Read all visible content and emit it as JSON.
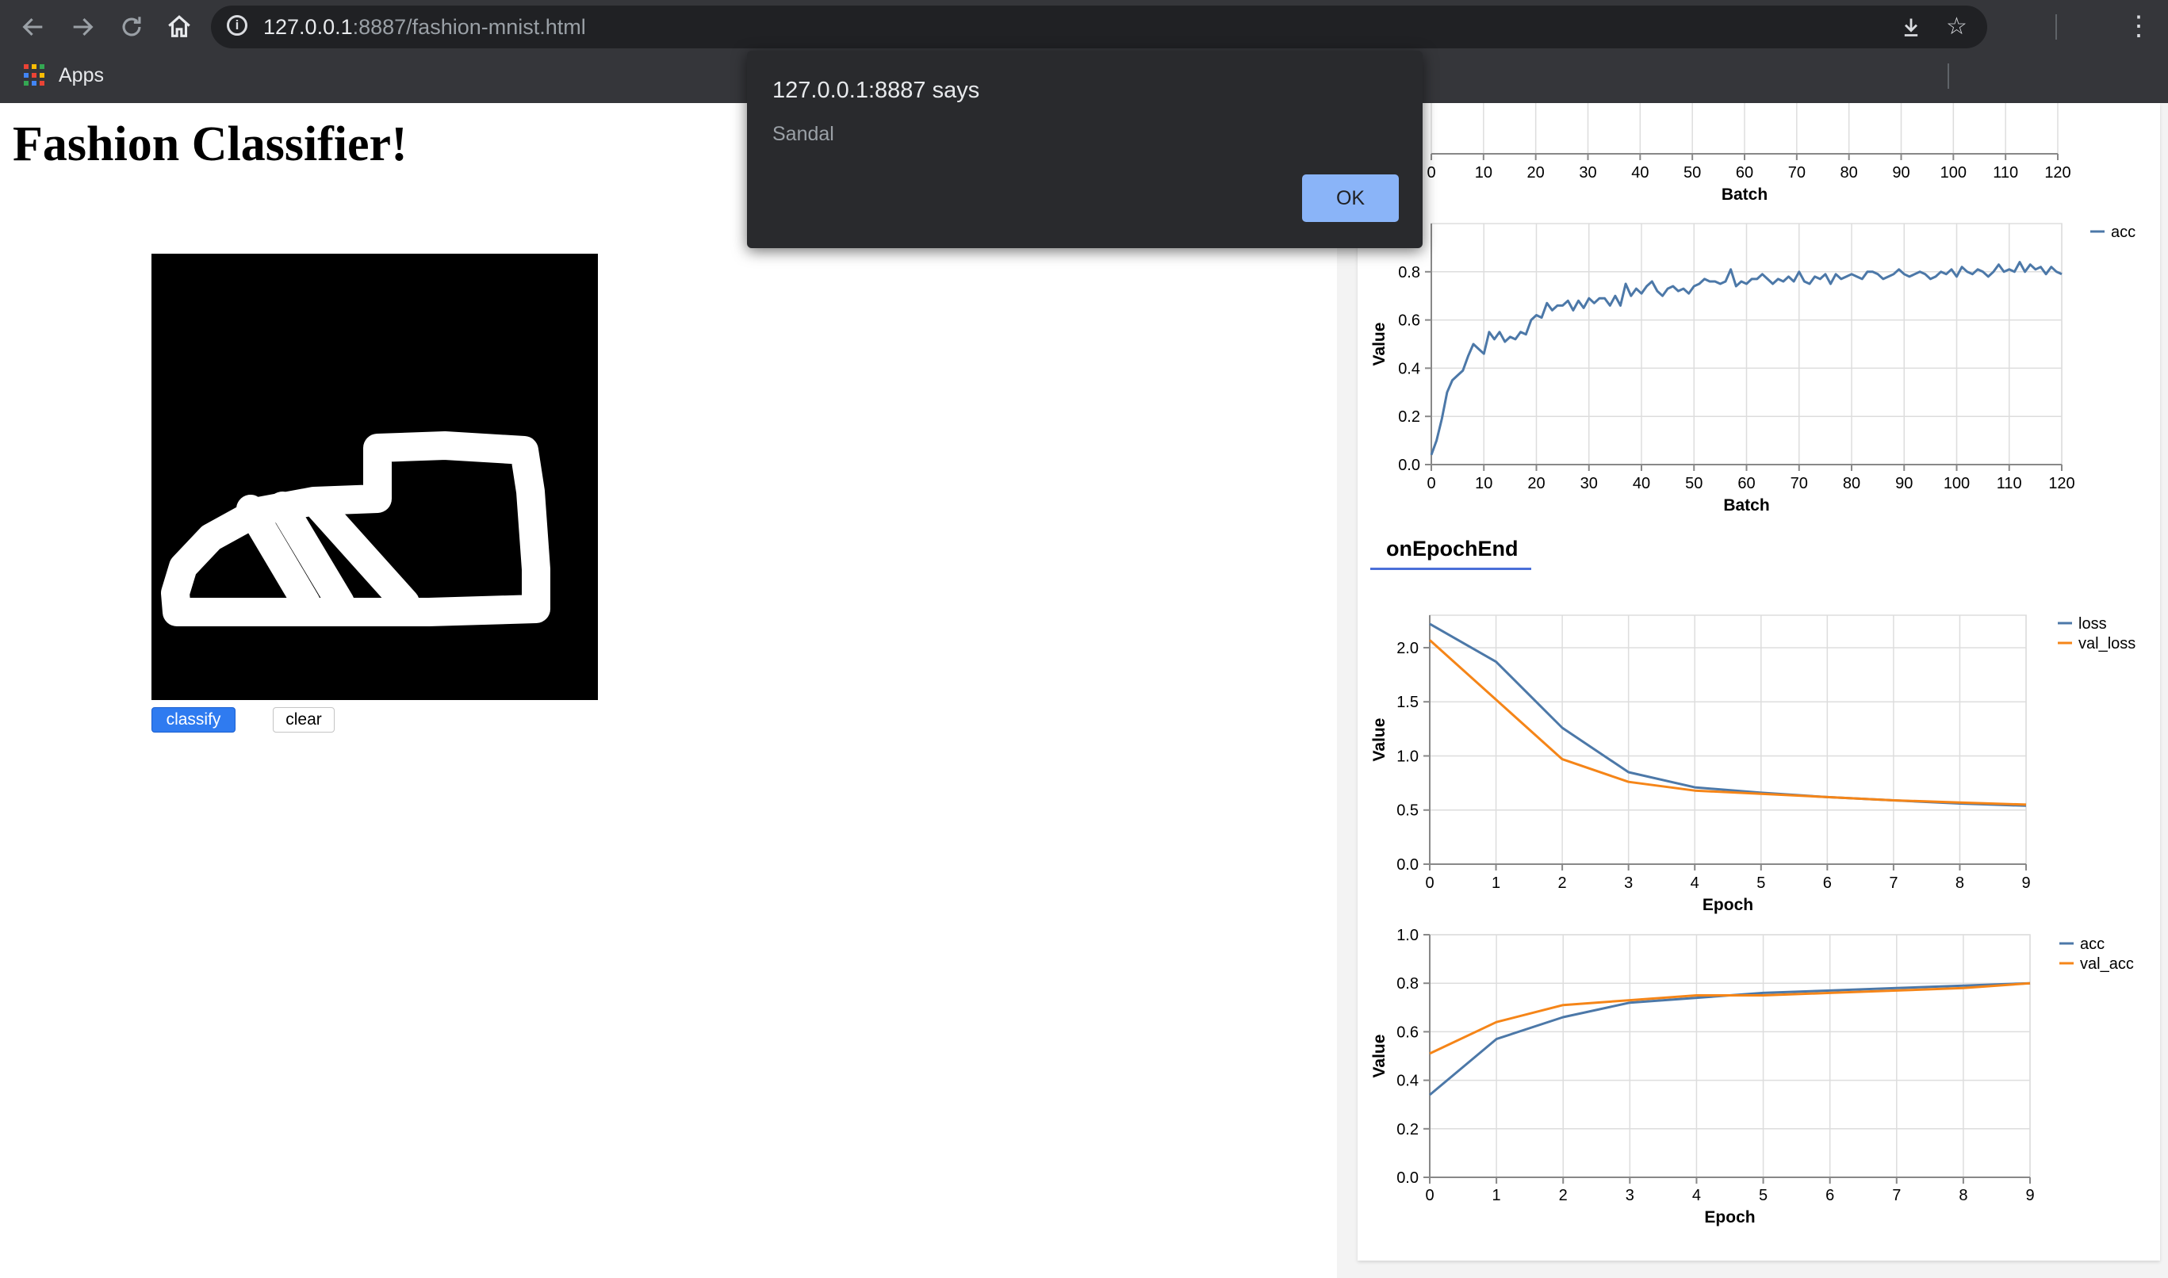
{
  "browser": {
    "url_host": "127.0.0.1",
    "url_rest": ":8887/fashion-mnist.html",
    "bookmarks": {
      "apps_label": "Apps"
    },
    "icons": [
      "back-icon",
      "forward-icon",
      "reload-icon",
      "home-icon",
      "info-icon",
      "download-icon",
      "star-icon",
      "menu-icon",
      "apps-grid-icon"
    ]
  },
  "page": {
    "title": "Fashion Classifier!",
    "classify_label": "classify",
    "clear_label": "clear"
  },
  "alert": {
    "title": "127.0.0.1:8887 says",
    "message": "Sandal",
    "ok_label": "OK"
  },
  "visor": {
    "epoch_tab_label": "onEpochEnd"
  },
  "chart_data": [
    {
      "id": "batch-axis-partial",
      "type": "line",
      "xlabel": "Batch",
      "xticks": [
        0,
        10,
        20,
        30,
        40,
        50,
        60,
        70,
        80,
        90,
        100,
        110,
        120
      ],
      "xlim": [
        0,
        120
      ]
    },
    {
      "id": "batch-acc",
      "type": "line",
      "xlabel": "Batch",
      "ylabel": "Value",
      "xlim": [
        0,
        120
      ],
      "ylim": [
        0,
        1
      ],
      "xticks": [
        0,
        10,
        20,
        30,
        40,
        50,
        60,
        70,
        80,
        90,
        100,
        110,
        120
      ],
      "yticks": [
        0.0,
        0.2,
        0.4,
        0.6,
        0.8
      ],
      "grid": true,
      "legend": "top-right",
      "series": [
        {
          "name": "acc",
          "color": "#4c78a8",
          "values": [
            0.04,
            0.1,
            0.19,
            0.3,
            0.35,
            0.37,
            0.39,
            0.45,
            0.5,
            0.48,
            0.46,
            0.55,
            0.52,
            0.55,
            0.51,
            0.53,
            0.52,
            0.55,
            0.54,
            0.6,
            0.62,
            0.61,
            0.67,
            0.64,
            0.66,
            0.66,
            0.68,
            0.64,
            0.68,
            0.65,
            0.69,
            0.67,
            0.69,
            0.69,
            0.66,
            0.7,
            0.66,
            0.75,
            0.7,
            0.73,
            0.71,
            0.74,
            0.76,
            0.72,
            0.7,
            0.73,
            0.74,
            0.72,
            0.73,
            0.71,
            0.74,
            0.75,
            0.77,
            0.76,
            0.76,
            0.75,
            0.76,
            0.81,
            0.74,
            0.76,
            0.75,
            0.77,
            0.77,
            0.79,
            0.77,
            0.75,
            0.77,
            0.76,
            0.78,
            0.76,
            0.8,
            0.76,
            0.75,
            0.78,
            0.77,
            0.79,
            0.75,
            0.79,
            0.77,
            0.78,
            0.79,
            0.78,
            0.77,
            0.8,
            0.8,
            0.79,
            0.77,
            0.78,
            0.79,
            0.81,
            0.79,
            0.78,
            0.79,
            0.8,
            0.79,
            0.77,
            0.78,
            0.8,
            0.79,
            0.81,
            0.78,
            0.82,
            0.8,
            0.79,
            0.81,
            0.8,
            0.78,
            0.8,
            0.83,
            0.8,
            0.81,
            0.8,
            0.84,
            0.8,
            0.83,
            0.81,
            0.82,
            0.79,
            0.82,
            0.8,
            0.79
          ]
        }
      ]
    },
    {
      "id": "epoch-loss",
      "type": "line",
      "xlabel": "Epoch",
      "ylabel": "Value",
      "x": [
        0,
        1,
        2,
        3,
        4,
        5,
        6,
        7,
        8,
        9
      ],
      "ylim": [
        0,
        2.3
      ],
      "yticks": [
        0.0,
        0.5,
        1.0,
        1.5,
        2.0
      ],
      "grid": true,
      "legend": "top-right",
      "series": [
        {
          "name": "loss",
          "color": "#4c78a8",
          "values": [
            2.22,
            1.87,
            1.26,
            0.85,
            0.71,
            0.66,
            0.62,
            0.59,
            0.56,
            0.54
          ]
        },
        {
          "name": "val_loss",
          "color": "#f58518",
          "values": [
            2.07,
            1.52,
            0.97,
            0.76,
            0.68,
            0.65,
            0.62,
            0.59,
            0.57,
            0.55
          ]
        }
      ]
    },
    {
      "id": "epoch-acc",
      "type": "line",
      "xlabel": "Epoch",
      "ylabel": "Value",
      "x": [
        0,
        1,
        2,
        3,
        4,
        5,
        6,
        7,
        8,
        9
      ],
      "ylim": [
        0,
        1
      ],
      "yticks": [
        0.0,
        0.2,
        0.4,
        0.6,
        0.8,
        1.0
      ],
      "grid": true,
      "legend": "top-right",
      "series": [
        {
          "name": "acc",
          "color": "#4c78a8",
          "values": [
            0.34,
            0.57,
            0.66,
            0.72,
            0.74,
            0.76,
            0.77,
            0.78,
            0.79,
            0.8
          ]
        },
        {
          "name": "val_acc",
          "color": "#f58518",
          "values": [
            0.51,
            0.64,
            0.71,
            0.73,
            0.75,
            0.75,
            0.76,
            0.77,
            0.78,
            0.8
          ]
        }
      ]
    }
  ]
}
